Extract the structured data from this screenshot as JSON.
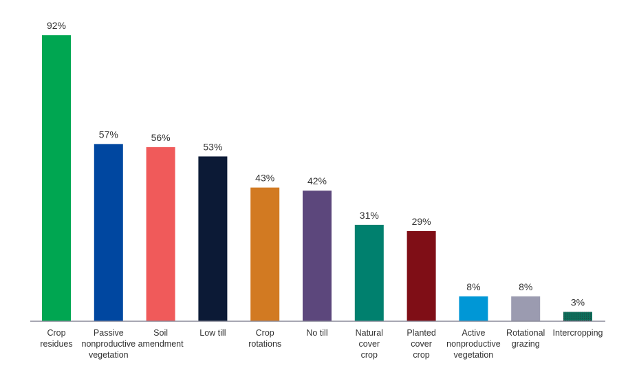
{
  "chart_data": {
    "type": "bar",
    "categories": [
      [
        "Crop",
        "residues"
      ],
      [
        "Passive",
        "nonproductive",
        "vegetation"
      ],
      [
        "Soil",
        "amendment"
      ],
      [
        "Low till"
      ],
      [
        "Crop",
        "rotations"
      ],
      [
        "No till"
      ],
      [
        "Natural",
        "cover",
        "crop"
      ],
      [
        "Planted",
        "cover",
        "crop"
      ],
      [
        "Active",
        "nonproductive",
        "vegetation"
      ],
      [
        "Rotational",
        "grazing"
      ],
      [
        "Intercropping"
      ]
    ],
    "values": [
      92,
      57,
      56,
      53,
      43,
      42,
      31,
      29,
      8,
      8,
      3
    ],
    "data_labels": [
      "92%",
      "57%",
      "56%",
      "53%",
      "43%",
      "42%",
      "31%",
      "29%",
      "8%",
      "8%",
      "3%"
    ],
    "colors": [
      "#00a651",
      "#0047a0",
      "#f05a5a",
      "#0c1a36",
      "#d27a22",
      "#5c477c",
      "#00806e",
      "#7f0e16",
      "#0097d6",
      "#9b9bb0",
      "#0d6d5a"
    ],
    "unit": "%",
    "ylim": [
      0,
      100
    ],
    "grid": false,
    "legend": "none"
  }
}
